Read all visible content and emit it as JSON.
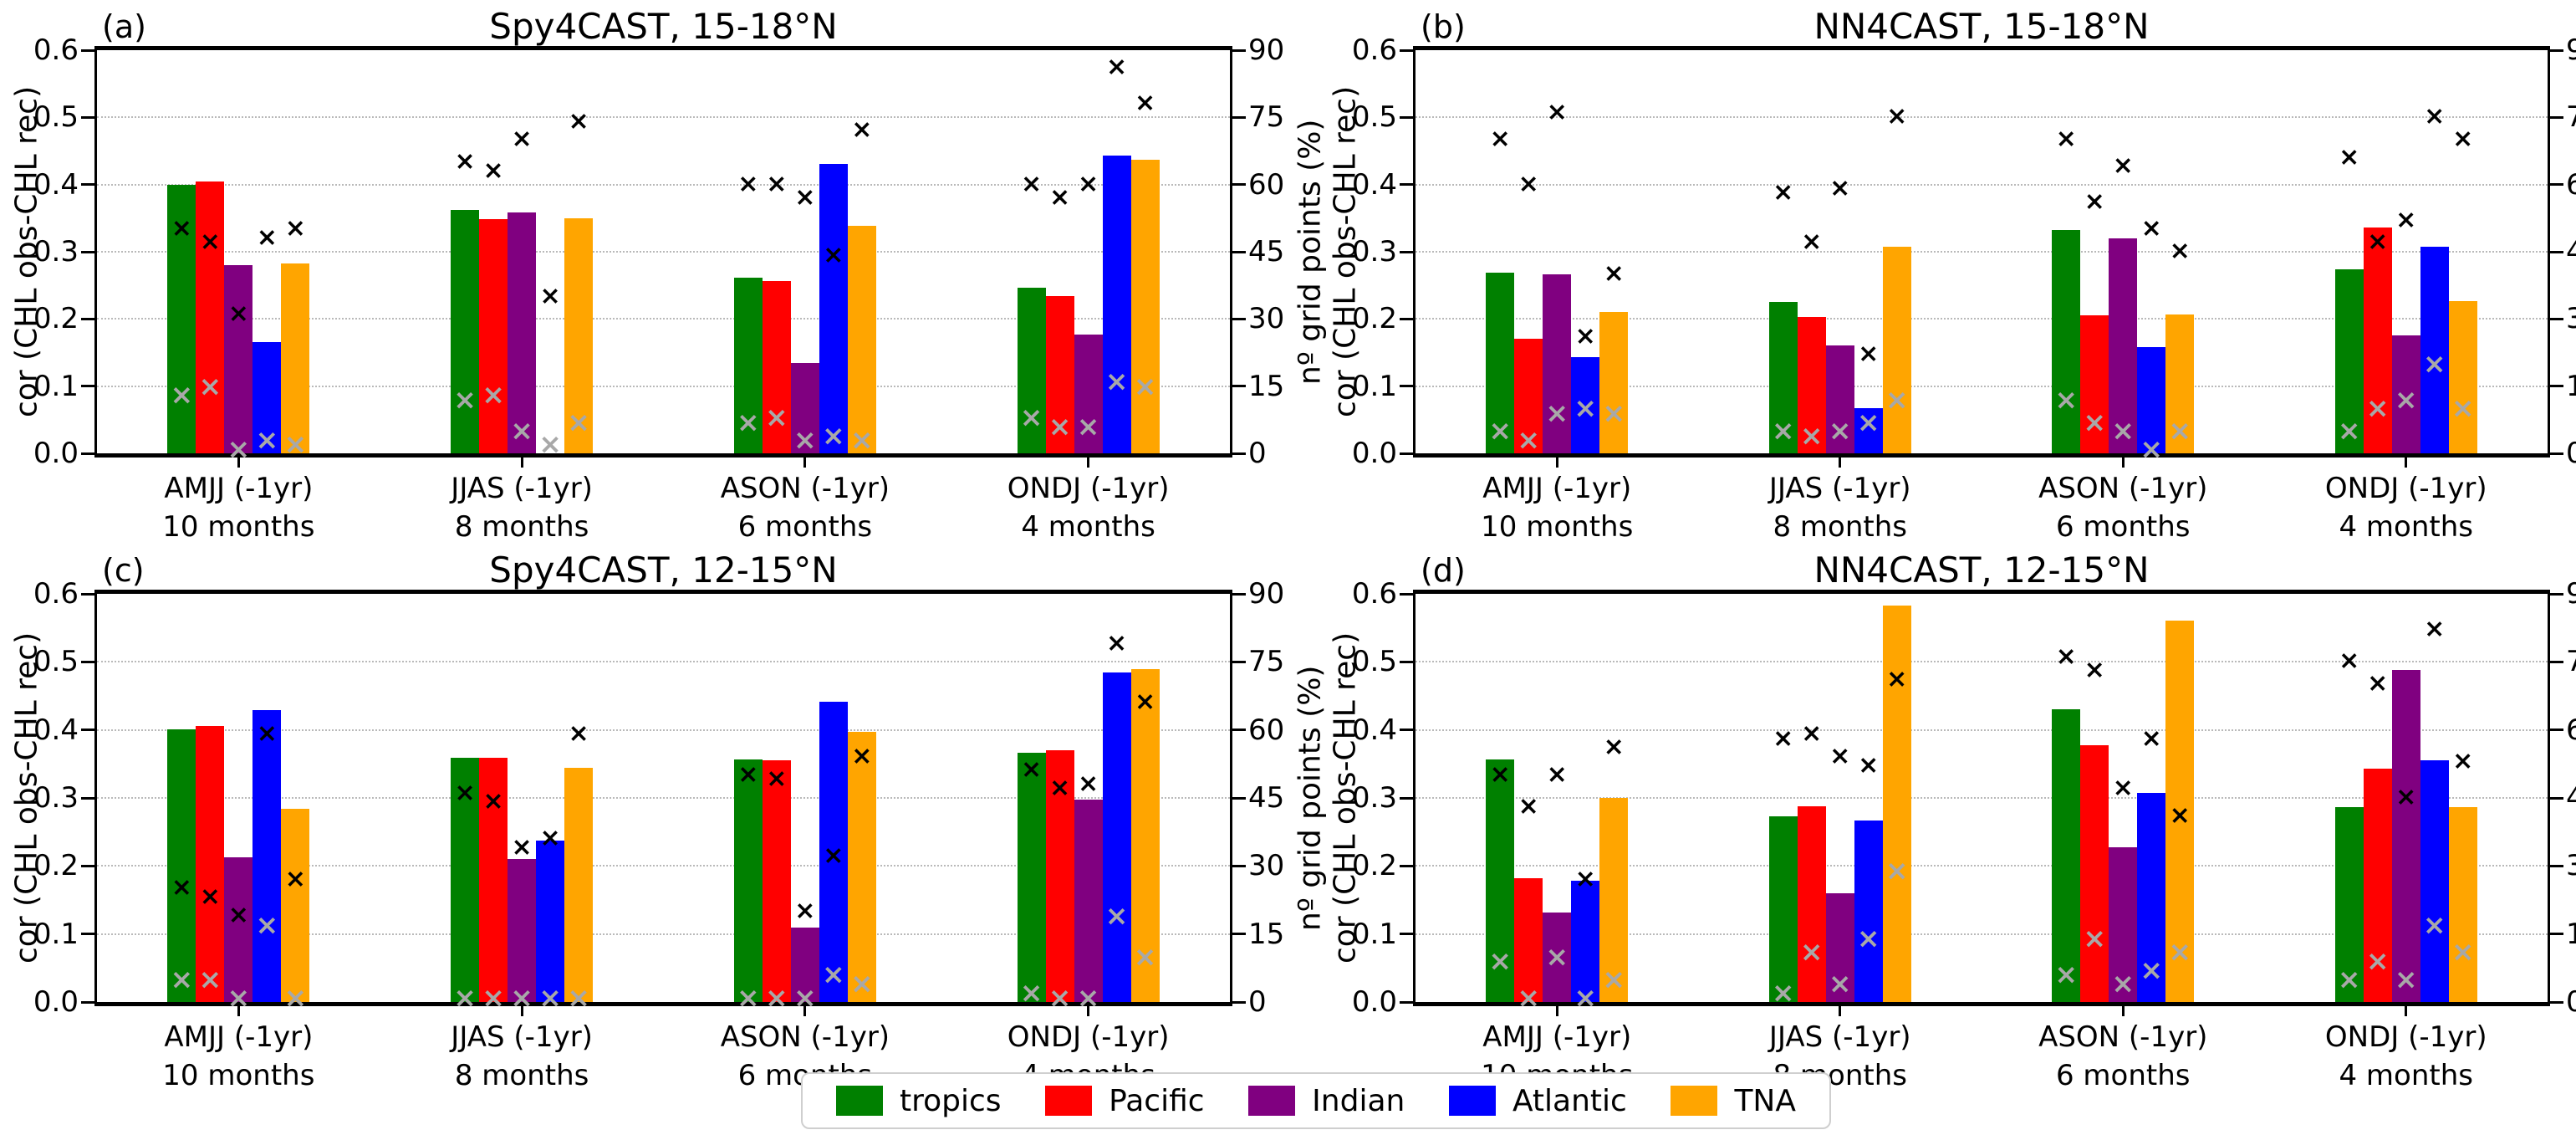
{
  "axes": {
    "ylabel_left": "cor (CHL obs-CHL rec)",
    "ylabel_right": "nº grid points (%)",
    "left_tick_labels": [
      "0.0",
      "0.1",
      "0.2",
      "0.3",
      "0.4",
      "0.5",
      "0.6"
    ],
    "right_tick_labels": [
      "0",
      "15",
      "30",
      "45",
      "60",
      "75",
      "90"
    ],
    "ylim_left": [
      0,
      0.6
    ],
    "ylim_right": [
      0,
      90
    ],
    "grid": "dotted horizontal at every 0.1 (= 15%)"
  },
  "legend": {
    "position": "bottom center",
    "items": [
      {
        "label": "tropics",
        "color": "#008000"
      },
      {
        "label": "Pacific",
        "color": "#ff0000"
      },
      {
        "label": "Indian",
        "color": "#800080"
      },
      {
        "label": "Atlantic",
        "color": "#0000ff"
      },
      {
        "label": "TNA",
        "color": "#ffa500"
      }
    ]
  },
  "marker_colors": {
    "black_x": "#000000",
    "gray_x": "#a8a8a8"
  },
  "chart_data": [
    {
      "type": "bar",
      "letter": "(a)",
      "title": "Spy4CAST, 15-18°N",
      "categories": [
        "AMJJ (-1yr)",
        "JJAS (-1yr)",
        "ASON (-1yr)",
        "ONDJ (-1yr)"
      ],
      "category_sublabels": [
        "10 months",
        "8 months",
        "6 months",
        "4 months"
      ],
      "ylim": [
        0,
        0.6
      ],
      "ylim_right": [
        0,
        90
      ],
      "series": [
        {
          "name": "tropics",
          "color": "#008000",
          "cor": [
            0.4,
            0.362,
            0.262,
            0.246
          ],
          "grid_pct_black_x": [
            50,
            65,
            60,
            60
          ],
          "grid_pct_gray_x": [
            13,
            12,
            7,
            8
          ]
        },
        {
          "name": "Pacific",
          "color": "#ff0000",
          "cor": [
            0.405,
            0.348,
            0.257,
            0.234
          ],
          "grid_pct_black_x": [
            47,
            63,
            60,
            57
          ],
          "grid_pct_gray_x": [
            15,
            13,
            8,
            6
          ]
        },
        {
          "name": "Indian",
          "color": "#800080",
          "cor": [
            0.28,
            0.358,
            0.135,
            0.177
          ],
          "grid_pct_black_x": [
            31,
            70,
            57,
            60
          ],
          "grid_pct_gray_x": [
            1,
            5,
            3,
            6
          ]
        },
        {
          "name": "Atlantic",
          "color": "#0000ff",
          "cor": [
            0.165,
            0.0,
            0.431,
            0.443
          ],
          "grid_pct_black_x": [
            48,
            35,
            44,
            86
          ],
          "grid_pct_gray_x": [
            3,
            2,
            4,
            16
          ]
        },
        {
          "name": "TNA",
          "color": "#ffa500",
          "cor": [
            0.283,
            0.35,
            0.338,
            0.437
          ],
          "grid_pct_black_x": [
            50,
            74,
            72,
            78
          ],
          "grid_pct_gray_x": [
            2,
            7,
            3,
            15
          ]
        }
      ]
    },
    {
      "type": "bar",
      "letter": "(b)",
      "title": "NN4CAST, 15-18°N",
      "categories": [
        "AMJJ (-1yr)",
        "JJAS (-1yr)",
        "ASON (-1yr)",
        "ONDJ (-1yr)"
      ],
      "category_sublabels": [
        "10 months",
        "8 months",
        "6 months",
        "4 months"
      ],
      "ylim": [
        0,
        0.6
      ],
      "ylim_right": [
        0,
        90
      ],
      "series": [
        {
          "name": "tropics",
          "color": "#008000",
          "cor": [
            0.269,
            0.225,
            0.333,
            0.274
          ],
          "grid_pct_black_x": [
            70,
            58,
            70,
            66
          ],
          "grid_pct_gray_x": [
            5,
            5,
            12,
            5
          ]
        },
        {
          "name": "Pacific",
          "color": "#ff0000",
          "cor": [
            0.17,
            0.203,
            0.206,
            0.336
          ],
          "grid_pct_black_x": [
            60,
            47,
            56,
            47
          ],
          "grid_pct_gray_x": [
            3,
            4,
            7,
            10
          ]
        },
        {
          "name": "Indian",
          "color": "#800080",
          "cor": [
            0.267,
            0.16,
            0.32,
            0.176
          ],
          "grid_pct_black_x": [
            76,
            59,
            64,
            52
          ],
          "grid_pct_gray_x": [
            9,
            5,
            5,
            12
          ]
        },
        {
          "name": "Atlantic",
          "color": "#0000ff",
          "cor": [
            0.143,
            0.067,
            0.158,
            0.307
          ],
          "grid_pct_black_x": [
            26,
            22,
            50,
            75
          ],
          "grid_pct_gray_x": [
            10,
            7,
            1,
            20
          ]
        },
        {
          "name": "TNA",
          "color": "#ffa500",
          "cor": [
            0.21,
            0.307,
            0.207,
            0.226
          ],
          "grid_pct_black_x": [
            40,
            75,
            45,
            70
          ],
          "grid_pct_gray_x": [
            9,
            12,
            5,
            10
          ]
        }
      ]
    },
    {
      "type": "bar",
      "letter": "(c)",
      "title": "Spy4CAST, 12-15°N",
      "categories": [
        "AMJJ (-1yr)",
        "JJAS (-1yr)",
        "ASON (-1yr)",
        "ONDJ (-1yr)"
      ],
      "category_sublabels": [
        "10 months",
        "8 months",
        "6 months",
        "4 months"
      ],
      "ylim": [
        0,
        0.6
      ],
      "ylim_right": [
        0,
        90
      ],
      "series": [
        {
          "name": "tropics",
          "color": "#008000",
          "cor": [
            0.401,
            0.359,
            0.356,
            0.366
          ],
          "grid_pct_black_x": [
            25,
            46,
            50,
            51
          ],
          "grid_pct_gray_x": [
            5,
            1,
            1,
            2
          ]
        },
        {
          "name": "Pacific",
          "color": "#ff0000",
          "cor": [
            0.406,
            0.359,
            0.355,
            0.37
          ],
          "grid_pct_black_x": [
            23,
            44,
            49,
            47
          ],
          "grid_pct_gray_x": [
            5,
            1,
            1,
            1
          ]
        },
        {
          "name": "Indian",
          "color": "#800080",
          "cor": [
            0.213,
            0.21,
            0.11,
            0.298
          ],
          "grid_pct_black_x": [
            19,
            34,
            20,
            48
          ],
          "grid_pct_gray_x": [
            1,
            1,
            1,
            1
          ]
        },
        {
          "name": "Atlantic",
          "color": "#0000ff",
          "cor": [
            0.429,
            0.237,
            0.442,
            0.485
          ],
          "grid_pct_black_x": [
            59,
            36,
            32,
            79
          ],
          "grid_pct_gray_x": [
            17,
            1,
            6,
            19
          ]
        },
        {
          "name": "TNA",
          "color": "#ffa500",
          "cor": [
            0.284,
            0.344,
            0.397,
            0.489
          ],
          "grid_pct_black_x": [
            27,
            59,
            54,
            66
          ],
          "grid_pct_gray_x": [
            1,
            1,
            4,
            10
          ]
        }
      ]
    },
    {
      "type": "bar",
      "letter": "(d)",
      "title": "NN4CAST, 12-15°N",
      "categories": [
        "AMJJ (-1yr)",
        "JJAS (-1yr)",
        "ASON (-1yr)",
        "ONDJ (-1yr)"
      ],
      "category_sublabels": [
        "10 months",
        "8 months",
        "6 months",
        "4 months"
      ],
      "ylim": [
        0,
        0.6
      ],
      "ylim_right": [
        0,
        90
      ],
      "series": [
        {
          "name": "tropics",
          "color": "#008000",
          "cor": [
            0.356,
            0.273,
            0.43,
            0.287
          ],
          "grid_pct_black_x": [
            50,
            58,
            76,
            75
          ],
          "grid_pct_gray_x": [
            9,
            2,
            6,
            5
          ]
        },
        {
          "name": "Pacific",
          "color": "#ff0000",
          "cor": [
            0.182,
            0.288,
            0.378,
            0.343
          ],
          "grid_pct_black_x": [
            43,
            59,
            73,
            70
          ],
          "grid_pct_gray_x": [
            1,
            11,
            14,
            9
          ]
        },
        {
          "name": "Indian",
          "color": "#800080",
          "cor": [
            0.132,
            0.16,
            0.228,
            0.488
          ],
          "grid_pct_black_x": [
            50,
            54,
            47,
            45
          ],
          "grid_pct_gray_x": [
            10,
            4,
            4,
            5
          ]
        },
        {
          "name": "Atlantic",
          "color": "#0000ff",
          "cor": [
            0.178,
            0.267,
            0.308,
            0.355
          ],
          "grid_pct_black_x": [
            27,
            52,
            58,
            82
          ],
          "grid_pct_gray_x": [
            1,
            14,
            7,
            17
          ]
        },
        {
          "name": "TNA",
          "color": "#ffa500",
          "cor": [
            0.3,
            0.583,
            0.561,
            0.287
          ],
          "grid_pct_black_x": [
            56,
            71,
            41,
            53
          ],
          "grid_pct_gray_x": [
            5,
            29,
            11,
            11
          ]
        }
      ]
    }
  ]
}
